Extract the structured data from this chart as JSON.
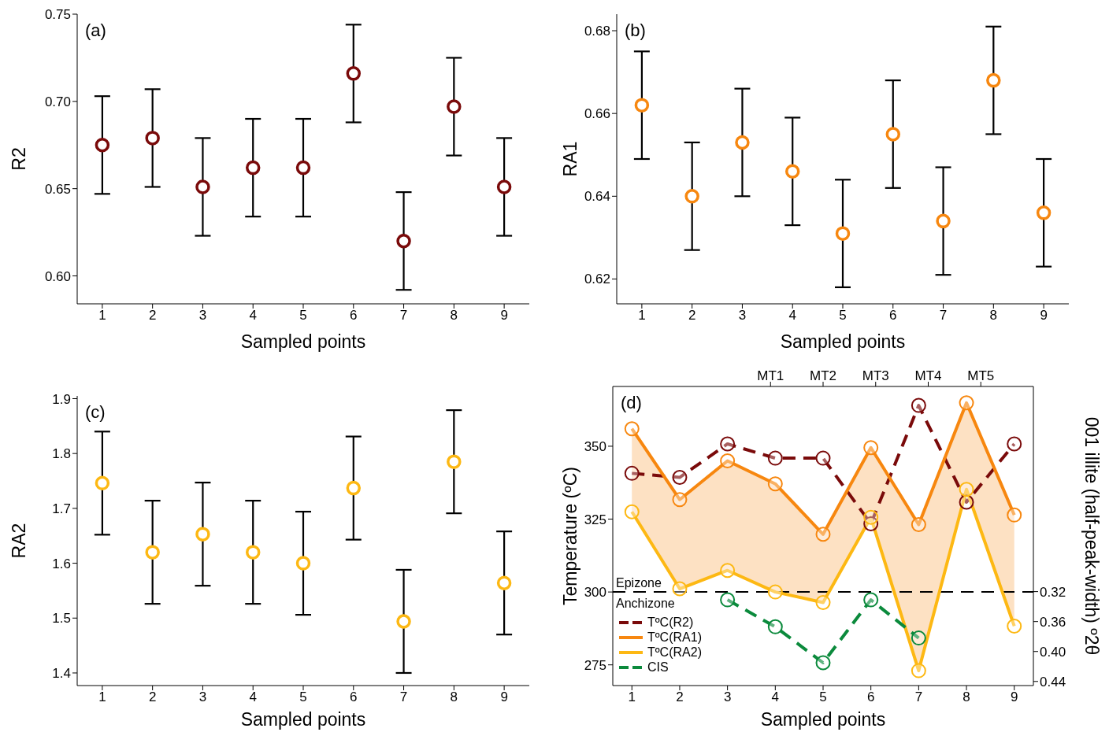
{
  "chart_data": [
    {
      "type": "scatter",
      "categories": [
        "1",
        "2",
        "3",
        "4",
        "5",
        "6",
        "7",
        "8",
        "9"
      ],
      "xlabel": "Sampled points",
      "ylabel": "R2",
      "annotations": [
        "(a)"
      ],
      "marker": "circle",
      "color": "#7a0a0a",
      "values": [
        0.675,
        0.679,
        0.651,
        0.662,
        0.662,
        0.716,
        0.62,
        0.697,
        0.651
      ],
      "errors": [
        0.028,
        0.028,
        0.028,
        0.028,
        0.028,
        0.028,
        0.028,
        0.028,
        0.028
      ],
      "ylim": [
        0.584,
        0.75
      ],
      "yticks": [
        {
          "value": 0.6,
          "label": "0.60"
        },
        0.65,
        {
          "value": 0.7,
          "label": "0.70"
        },
        0.75
      ]
    },
    {
      "type": "scatter",
      "categories": [
        "1",
        "2",
        "3",
        "4",
        "5",
        "6",
        "7",
        "8",
        "9"
      ],
      "xlabel": "Sampled points",
      "ylabel": "RA1",
      "annotations": [
        "(b)"
      ],
      "marker": "circle",
      "color": "#f7870f",
      "values": [
        0.662,
        0.64,
        0.653,
        0.646,
        0.631,
        0.655,
        0.634,
        0.668,
        0.636
      ],
      "errors": [
        0.013,
        0.013,
        0.013,
        0.013,
        0.013,
        0.013,
        0.013,
        0.013,
        0.013
      ],
      "ylim": [
        0.614,
        0.684
      ],
      "yticks": [
        0.62,
        0.64,
        0.66,
        0.68
      ]
    },
    {
      "type": "scatter",
      "categories": [
        "1",
        "2",
        "3",
        "4",
        "5",
        "6",
        "7",
        "8",
        "9"
      ],
      "xlabel": "Sampled points",
      "ylabel": "RA2",
      "annotations": [
        "(c)"
      ],
      "marker": "circle",
      "color": "#fdb813",
      "values": [
        1.746,
        1.62,
        1.653,
        1.62,
        1.6,
        1.737,
        1.494,
        1.785,
        1.564
      ],
      "errors": [
        0.094,
        0.094,
        0.094,
        0.094,
        0.094,
        0.094,
        0.094,
        0.094,
        0.094
      ],
      "ylim": [
        1.377,
        1.905
      ],
      "yticks": [
        1.4,
        1.5,
        1.6,
        1.7,
        1.8,
        1.9
      ]
    },
    {
      "type": "line",
      "x": [
        1,
        2,
        3,
        4,
        5,
        6,
        7,
        8,
        9
      ],
      "xlabel": "Sampled points",
      "ylabel": "Temperature (ºC)",
      "y2label": "001 illite (half-peak-width) º2θ",
      "annotations": [
        "(d)",
        {
          "text": "Anchizone",
          "y": 300
        },
        "MT1",
        "MT2",
        "MT3",
        "MT4",
        "MT5"
      ],
      "marker": "circle",
      "legend": "bottom left",
      "xlim": [
        0.6,
        9.4
      ],
      "xticks": [
        1,
        2,
        3,
        4,
        5,
        6,
        7,
        8,
        9
      ],
      "ylim": [
        267.9,
        370.5
      ],
      "yticks": [
        275,
        300,
        325,
        350
      ],
      "y2lim": [
        0.4455,
        0.046
      ],
      "y2ticks": [
        0.32,
        0.36,
        {
          "value": 0.4,
          "label": "0.40"
        },
        0.44
      ],
      "ref_lines": [
        {
          "axis": "y",
          "value": 300,
          "label": "Epizone",
          "color": "#000000",
          "line_style": "dashed"
        }
      ],
      "series": [
        {
          "name": "TºC(R2)",
          "color": "#7a0a0a",
          "line_style": "dashed",
          "values": [
            340.7,
            339.3,
            350.8,
            345.9,
            345.9,
            323.4,
            364.0,
            330.8,
            350.8
          ]
        },
        {
          "name": "TºC(RA1)",
          "color": "#f7870f",
          "line_style": "solid",
          "values": [
            356.0,
            331.7,
            345.0,
            337.1,
            319.8,
            349.5,
            323.1,
            364.9,
            326.4
          ],
          "lower": [
            327.5,
            301.1,
            307.4,
            300.0,
            296.4,
            325.6,
            273.0,
            335.2,
            288.3
          ],
          "upper": [
            356.0,
            331.7,
            345.0,
            337.1,
            319.8,
            349.5,
            323.1,
            364.9,
            326.4
          ]
        },
        {
          "name": "TºC(RA2)",
          "color": "#fdb813",
          "line_style": "solid",
          "values": [
            327.5,
            301.1,
            307.4,
            300.0,
            296.4,
            325.6,
            273.0,
            335.2,
            288.3
          ]
        },
        {
          "name": "CIS",
          "color": "#0b8a3c",
          "line_style": "dashed",
          "axis": "y2",
          "values": [
            null,
            null,
            0.331,
            0.367,
            0.415,
            0.331,
            0.382,
            null,
            null
          ]
        }
      ]
    }
  ]
}
